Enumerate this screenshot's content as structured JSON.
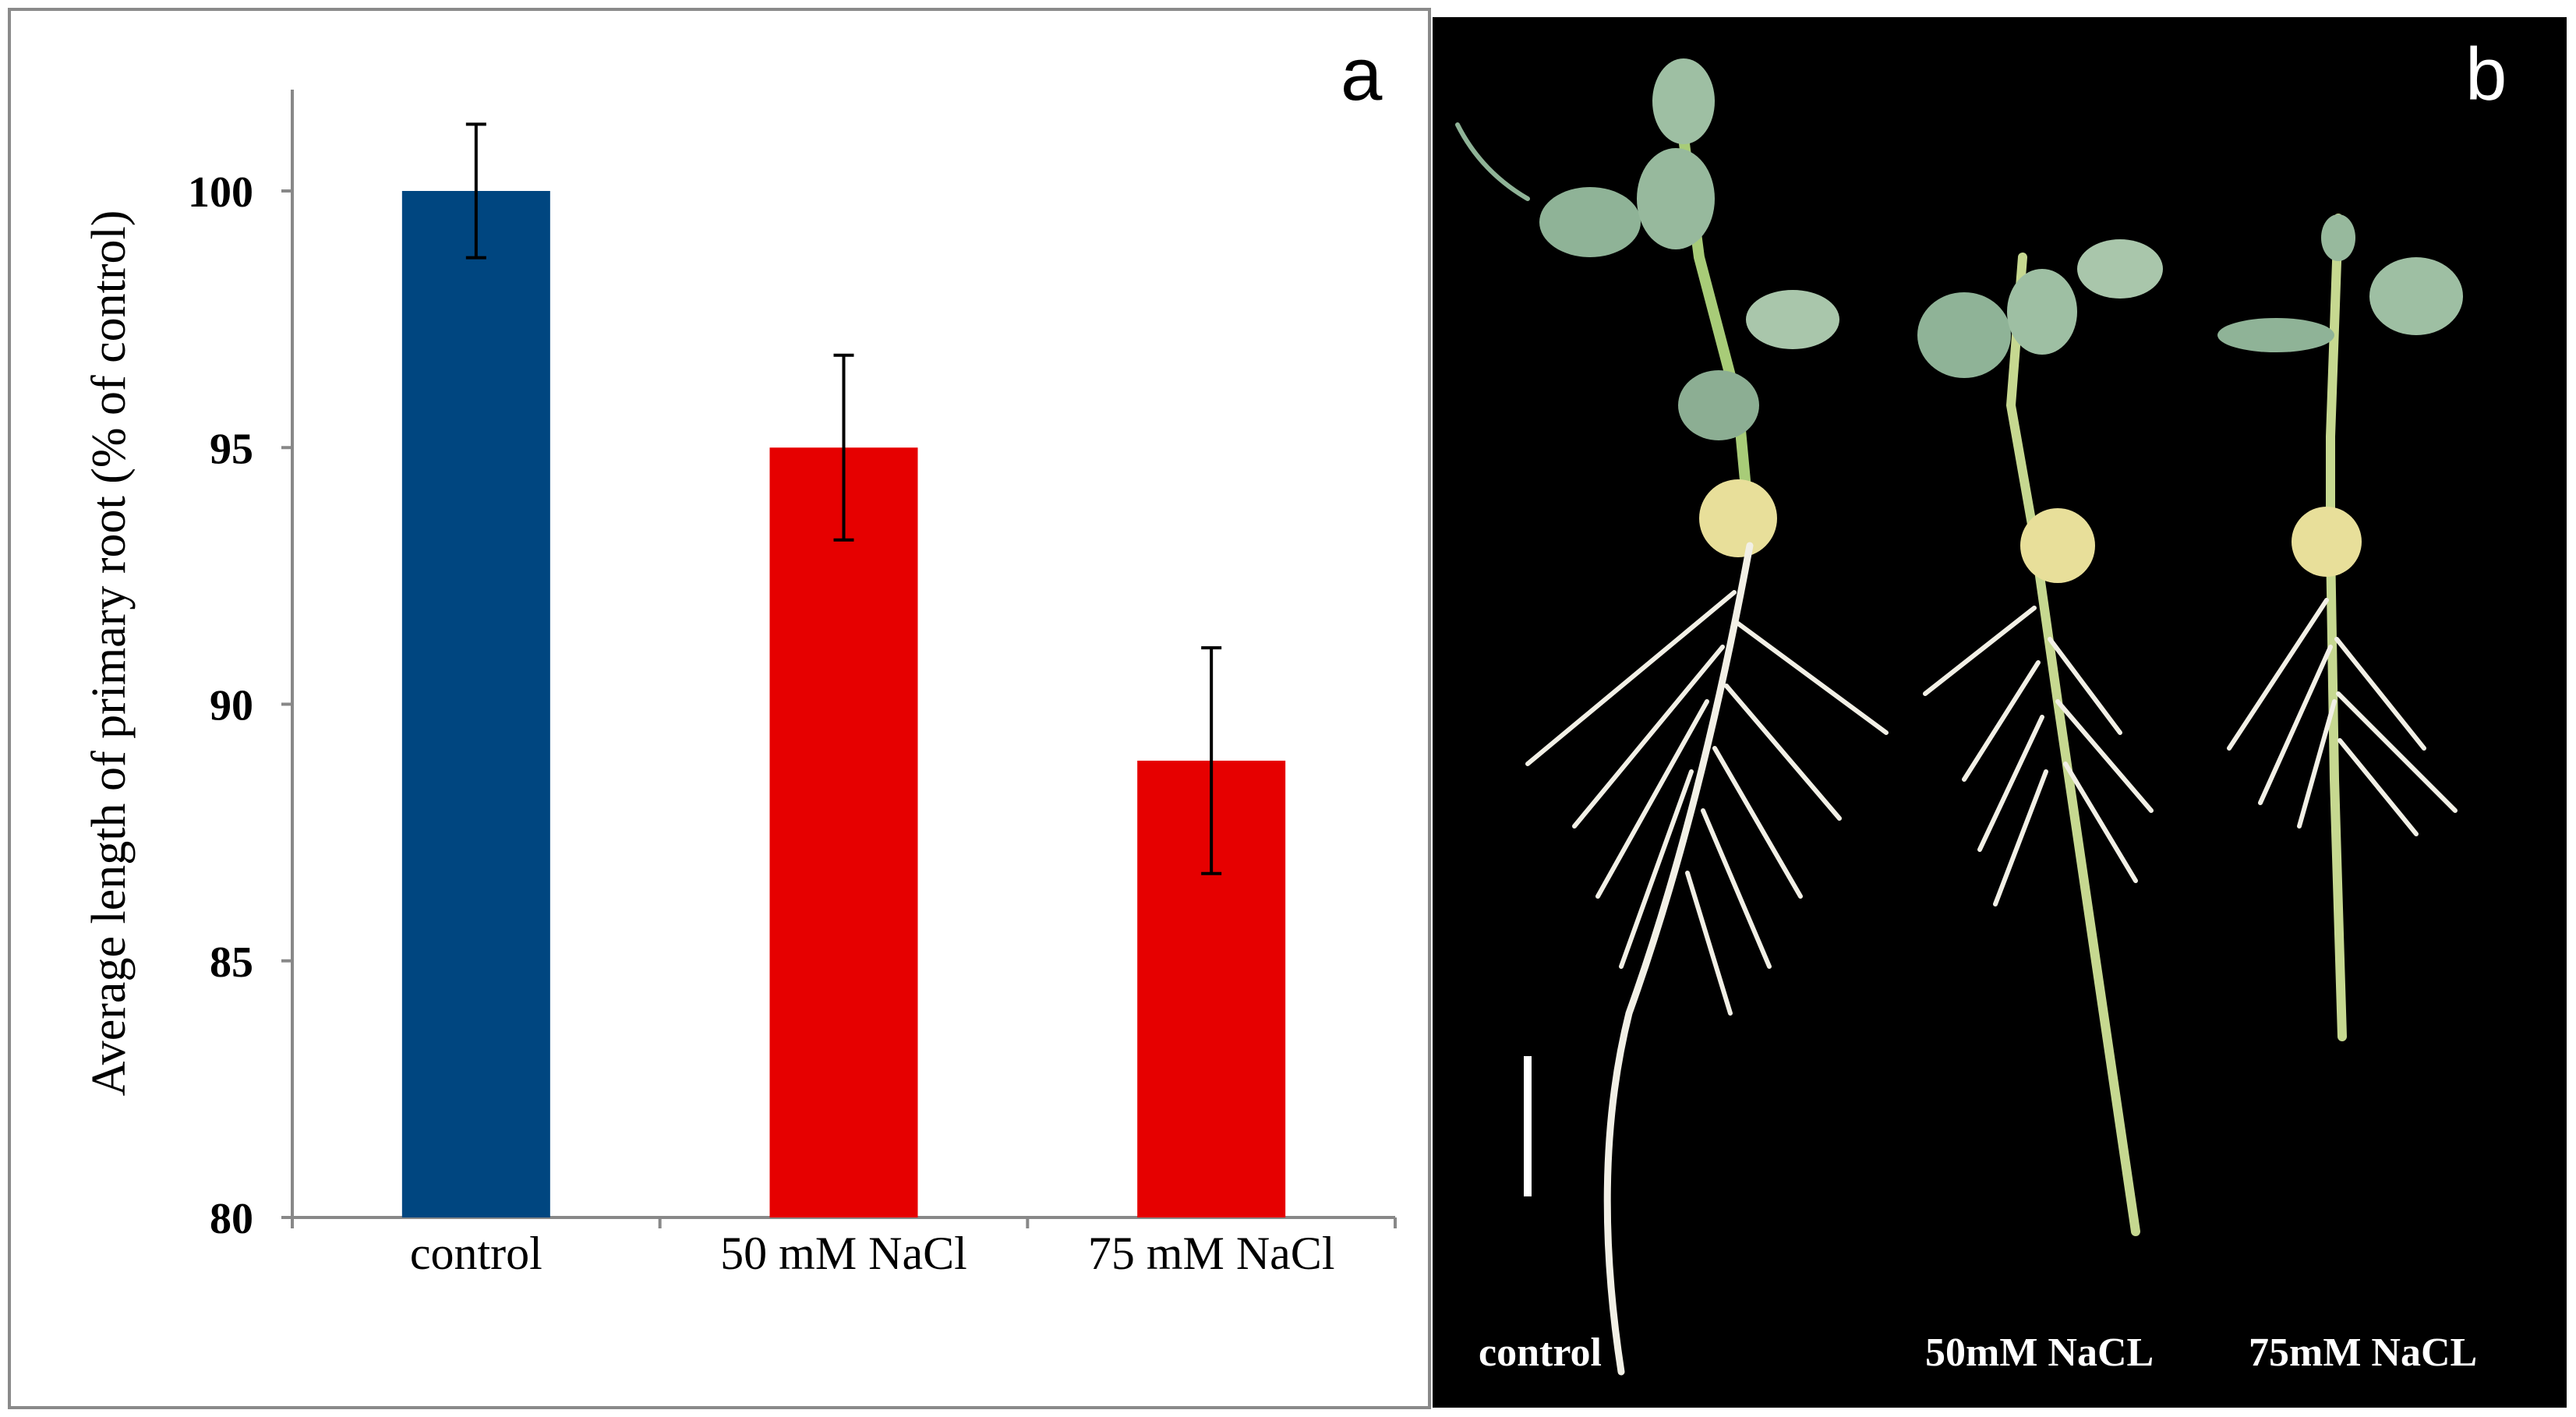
{
  "panels": {
    "a": {
      "letter": "a"
    },
    "b": {
      "letter": "b",
      "labels": [
        "control",
        "50mM NaCL",
        "75mM NaCL"
      ],
      "background_color": "#000000",
      "label_color": "#ffffff"
    }
  },
  "chart_data": {
    "type": "bar",
    "categories": [
      "control",
      "50 mM NaCl",
      "75 mM NaCl"
    ],
    "values": [
      100.0,
      95.0,
      88.9
    ],
    "errors": [
      1.3,
      1.8,
      2.2
    ],
    "colors": [
      "#004680",
      "#e60000",
      "#e60000"
    ],
    "ylabel": "Average length of primary root (% of control)",
    "xlabel": "",
    "ylim": [
      80,
      102
    ],
    "yticks": [
      80,
      85,
      90,
      95,
      100
    ],
    "grid": false,
    "legend": "none"
  }
}
